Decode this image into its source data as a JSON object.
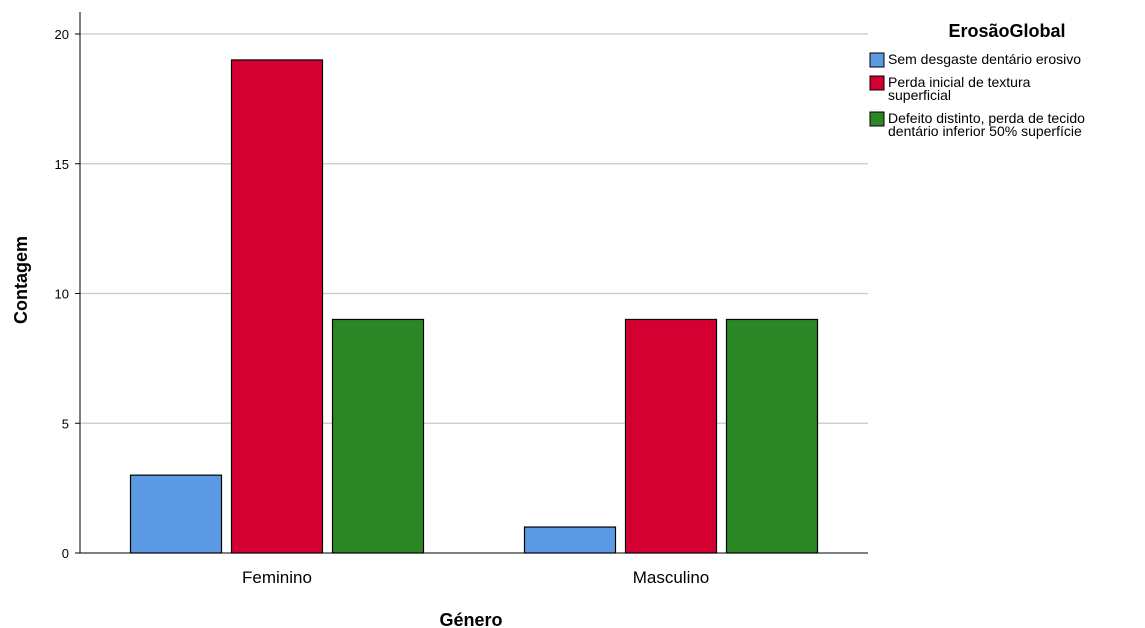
{
  "chart_data": {
    "type": "bar",
    "xlabel": "Género",
    "ylabel": "Contagem",
    "categories": [
      "Feminino",
      "Masculino"
    ],
    "ylim": [
      0,
      20
    ],
    "yticks": [
      0,
      5,
      10,
      15,
      20
    ],
    "grid": true,
    "legend_position": "right",
    "legend_title": "ErosãoGlobal",
    "series": [
      {
        "name": "Sem desgaste dentário erosivo",
        "name_lines": [
          "Sem desgaste dentário erosivo"
        ],
        "color": "#5b99e5",
        "values": [
          3,
          1
        ]
      },
      {
        "name": "Perda inicial de textura superficial",
        "name_lines": [
          "Perda inicial de textura",
          "superficial"
        ],
        "color": "#d50032",
        "values": [
          19,
          9
        ]
      },
      {
        "name": "Defeito distinto, perda de tecido dentário inferior 50% superfície",
        "name_lines": [
          "Defeito distinto, perda de tecido",
          "dentário inferior 50% superfície"
        ],
        "color": "#2b8726",
        "values": [
          9,
          9
        ]
      }
    ]
  }
}
